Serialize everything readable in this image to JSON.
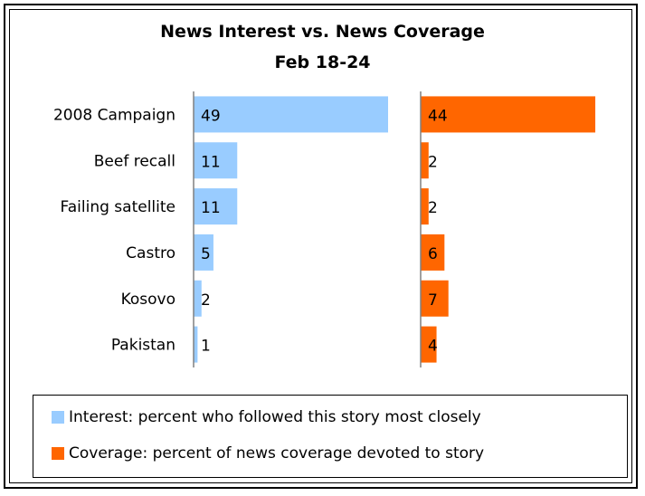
{
  "chart_data": {
    "type": "bar",
    "title": "News Interest vs. News Coverage",
    "subtitle": "Feb 18-24",
    "categories": [
      "2008 Campaign",
      "Beef recall",
      "Failing satellite",
      "Castro",
      "Kosovo",
      "Pakistan"
    ],
    "series": [
      {
        "name": "Interest: percent who followed this story most closely",
        "values": [
          49,
          11,
          11,
          5,
          2,
          1
        ],
        "color": "#99ccff"
      },
      {
        "name": "Coverage: percent of news coverage devoted to story",
        "values": [
          44,
          2,
          2,
          6,
          7,
          4
        ],
        "color": "#ff6600"
      }
    ],
    "xlim": [
      0,
      50
    ],
    "grid": false,
    "legend_position": "bottom"
  }
}
